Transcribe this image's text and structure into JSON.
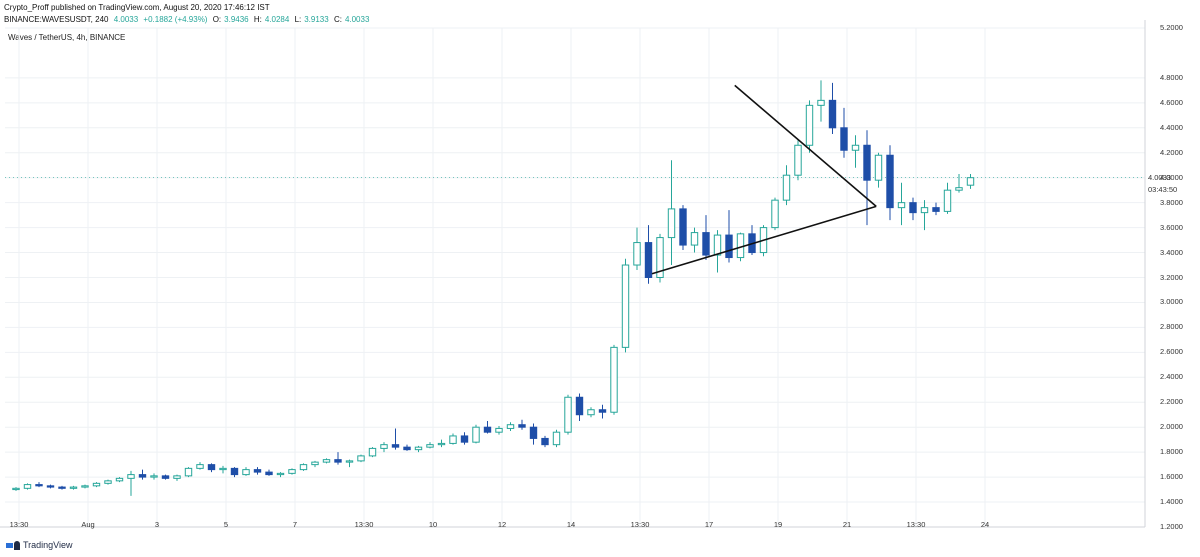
{
  "header": {
    "publisher_line": "Crypto_Proff published on TradingView.com, August 20, 2020 17:46:12 IST",
    "symbol_line": "BINANCE:WAVESUSDT, 240",
    "last": "4.0033",
    "change": "+0.1882 (+4.93%)",
    "o_label": "O:",
    "o": "3.9436",
    "h_label": "H:",
    "h": "4.0284",
    "l_label": "L:",
    "l": "3.9133",
    "c_label": "C:",
    "c": "4.0033"
  },
  "symbol_title": "Waves / TetherUS, 4h, BINANCE",
  "current_price_label": "4.0033",
  "countdown_label": "03:43:50",
  "footer": {
    "brand": "TradingView"
  },
  "colors": {
    "up": "#26a69a",
    "down": "#1e4ea8",
    "grid": "#eef1f4",
    "axis": "#d0d3d8",
    "pattern": "#111111"
  },
  "chart_data": {
    "type": "candlestick",
    "title": "Waves / TetherUS, 4h, BINANCE",
    "y_axis_side": "right",
    "ylim": [
      1.2,
      5.2
    ],
    "y_ticks": [
      "5.2000",
      "4.8000",
      "4.6000",
      "4.4000",
      "4.2000",
      "4.0000",
      "3.8000",
      "3.6000",
      "3.4000",
      "3.2000",
      "3.0000",
      "2.8000",
      "2.6000",
      "2.4000",
      "2.2000",
      "2.0000",
      "1.8000",
      "1.6000",
      "1.4000",
      "1.2000"
    ],
    "x_tick_labels": [
      "13:30",
      "Aug",
      "3",
      "5",
      "7",
      "13:30",
      "10",
      "12",
      "14",
      "13:30",
      "17",
      "19",
      "21",
      "13:30",
      "24"
    ],
    "x_tick_values": [
      0,
      6,
      12,
      18,
      24,
      30,
      36,
      42,
      48,
      54,
      60,
      66,
      72,
      78,
      84
    ],
    "candles": [
      [
        1.5,
        1.52,
        1.49,
        1.51
      ],
      [
        1.51,
        1.55,
        1.5,
        1.54
      ],
      [
        1.54,
        1.56,
        1.52,
        1.53
      ],
      [
        1.53,
        1.54,
        1.51,
        1.52
      ],
      [
        1.52,
        1.53,
        1.5,
        1.51
      ],
      [
        1.51,
        1.53,
        1.5,
        1.52
      ],
      [
        1.52,
        1.54,
        1.51,
        1.53
      ],
      [
        1.53,
        1.56,
        1.52,
        1.55
      ],
      [
        1.55,
        1.58,
        1.54,
        1.57
      ],
      [
        1.57,
        1.6,
        1.56,
        1.59
      ],
      [
        1.59,
        1.65,
        1.45,
        1.62
      ],
      [
        1.62,
        1.66,
        1.58,
        1.6
      ],
      [
        1.6,
        1.63,
        1.58,
        1.61
      ],
      [
        1.61,
        1.62,
        1.58,
        1.59
      ],
      [
        1.59,
        1.62,
        1.57,
        1.61
      ],
      [
        1.61,
        1.68,
        1.6,
        1.67
      ],
      [
        1.67,
        1.72,
        1.66,
        1.7
      ],
      [
        1.7,
        1.71,
        1.64,
        1.66
      ],
      [
        1.66,
        1.69,
        1.63,
        1.67
      ],
      [
        1.67,
        1.68,
        1.6,
        1.62
      ],
      [
        1.62,
        1.68,
        1.61,
        1.66
      ],
      [
        1.66,
        1.68,
        1.62,
        1.64
      ],
      [
        1.64,
        1.66,
        1.61,
        1.62
      ],
      [
        1.62,
        1.64,
        1.6,
        1.63
      ],
      [
        1.63,
        1.67,
        1.62,
        1.66
      ],
      [
        1.66,
        1.71,
        1.65,
        1.7
      ],
      [
        1.7,
        1.73,
        1.68,
        1.72
      ],
      [
        1.72,
        1.75,
        1.71,
        1.74
      ],
      [
        1.74,
        1.8,
        1.7,
        1.72
      ],
      [
        1.72,
        1.74,
        1.68,
        1.73
      ],
      [
        1.73,
        1.78,
        1.72,
        1.77
      ],
      [
        1.77,
        1.84,
        1.76,
        1.83
      ],
      [
        1.83,
        1.88,
        1.8,
        1.86
      ],
      [
        1.86,
        1.99,
        1.82,
        1.84
      ],
      [
        1.84,
        1.86,
        1.81,
        1.82
      ],
      [
        1.82,
        1.85,
        1.8,
        1.84
      ],
      [
        1.84,
        1.88,
        1.83,
        1.86
      ],
      [
        1.86,
        1.9,
        1.84,
        1.87
      ],
      [
        1.87,
        1.95,
        1.86,
        1.93
      ],
      [
        1.93,
        1.96,
        1.86,
        1.88
      ],
      [
        1.88,
        2.02,
        1.87,
        2.0
      ],
      [
        2.0,
        2.05,
        1.95,
        1.96
      ],
      [
        1.96,
        2.01,
        1.94,
        1.99
      ],
      [
        1.99,
        2.04,
        1.97,
        2.02
      ],
      [
        2.02,
        2.06,
        1.98,
        2.0
      ],
      [
        2.0,
        2.03,
        1.86,
        1.91
      ],
      [
        1.91,
        1.93,
        1.84,
        1.86
      ],
      [
        1.86,
        1.98,
        1.84,
        1.96
      ],
      [
        1.96,
        2.26,
        1.94,
        2.24
      ],
      [
        2.24,
        2.27,
        2.05,
        2.1
      ],
      [
        2.1,
        2.16,
        2.08,
        2.14
      ],
      [
        2.14,
        2.18,
        2.07,
        2.12
      ],
      [
        2.12,
        2.66,
        2.1,
        2.64
      ],
      [
        2.64,
        3.35,
        2.6,
        3.3
      ],
      [
        3.3,
        3.6,
        3.26,
        3.48
      ],
      [
        3.48,
        3.62,
        3.15,
        3.2
      ],
      [
        3.2,
        3.55,
        3.16,
        3.52
      ],
      [
        3.52,
        4.14,
        3.3,
        3.75
      ],
      [
        3.75,
        3.78,
        3.42,
        3.46
      ],
      [
        3.46,
        3.6,
        3.4,
        3.56
      ],
      [
        3.56,
        3.7,
        3.34,
        3.38
      ],
      [
        3.38,
        3.58,
        3.24,
        3.54
      ],
      [
        3.54,
        3.74,
        3.32,
        3.36
      ],
      [
        3.36,
        3.56,
        3.33,
        3.55
      ],
      [
        3.55,
        3.62,
        3.38,
        3.4
      ],
      [
        3.4,
        3.62,
        3.37,
        3.6
      ],
      [
        3.6,
        3.84,
        3.58,
        3.82
      ],
      [
        3.82,
        4.1,
        3.78,
        4.02
      ],
      [
        4.02,
        4.3,
        3.98,
        4.26
      ],
      [
        4.26,
        4.62,
        4.2,
        4.58
      ],
      [
        4.58,
        4.78,
        4.45,
        4.62
      ],
      [
        4.62,
        4.76,
        4.35,
        4.4
      ],
      [
        4.4,
        4.56,
        4.16,
        4.22
      ],
      [
        4.22,
        4.34,
        4.08,
        4.26
      ],
      [
        4.26,
        4.38,
        3.62,
        3.98
      ],
      [
        3.98,
        4.2,
        3.92,
        4.18
      ],
      [
        4.18,
        4.26,
        3.66,
        3.76
      ],
      [
        3.76,
        3.96,
        3.62,
        3.8
      ],
      [
        3.8,
        3.84,
        3.66,
        3.72
      ],
      [
        3.72,
        3.82,
        3.58,
        3.76
      ],
      [
        3.76,
        3.8,
        3.7,
        3.73
      ],
      [
        3.73,
        3.96,
        3.71,
        3.9
      ],
      [
        3.9,
        4.03,
        3.88,
        3.92
      ],
      [
        3.94,
        4.03,
        3.91,
        4.0
      ]
    ],
    "pattern_lines": [
      [
        [
          62.5,
          4.74
        ],
        [
          74.8,
          3.77
        ]
      ],
      [
        [
          55.3,
          3.23
        ],
        [
          74.8,
          3.77
        ]
      ]
    ]
  }
}
